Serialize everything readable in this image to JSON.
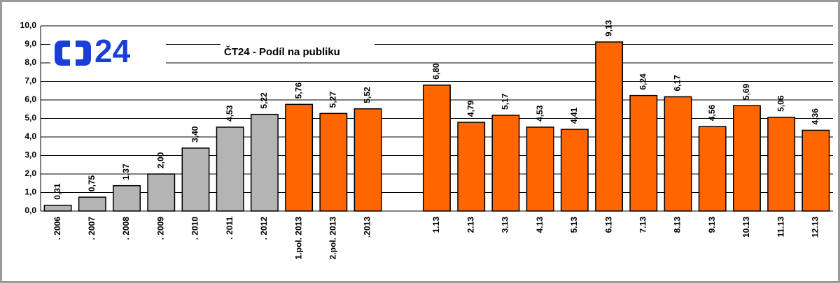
{
  "chart_data": {
    "type": "bar",
    "title": "ČT24 - Podíl na publiku",
    "logo": "24",
    "categories": [
      ". 2006",
      ". 2007",
      ". 2008",
      ". 2009",
      ". 2010",
      ". 2011",
      ". 2012",
      "1.pol. 2013",
      "2.pol. 2013",
      ".2013",
      null,
      "1.13",
      "2.13",
      "3.13",
      "4.13",
      "5.13",
      "6.13",
      "7.13",
      "8.13",
      "9.13",
      "10.13",
      "11.13",
      "12.13"
    ],
    "values": [
      0.31,
      0.75,
      1.37,
      2.0,
      3.4,
      4.53,
      5.22,
      5.76,
      5.27,
      5.52,
      null,
      6.8,
      4.79,
      5.17,
      4.53,
      4.41,
      9.13,
      6.24,
      6.17,
      4.56,
      5.69,
      5.06,
      4.36
    ],
    "value_labels": [
      "0,31",
      "0,75",
      "1,37",
      "2,00",
      "3,40",
      "4,53",
      "5,22",
      "5,76",
      "5,27",
      "5,52",
      null,
      "6,80",
      "4,79",
      "5,17",
      "4,53",
      "4,41",
      "9,13",
      "6,24",
      "6,17",
      "4,56",
      "5,69",
      "5,06",
      "4,36"
    ],
    "colors": [
      "#b4b4b4",
      "#b4b4b4",
      "#b4b4b4",
      "#b4b4b4",
      "#b4b4b4",
      "#b4b4b4",
      "#b4b4b4",
      "#ff6600",
      "#ff6600",
      "#ff6600",
      null,
      "#ff6600",
      "#ff6600",
      "#ff6600",
      "#ff6600",
      "#ff6600",
      "#ff6600",
      "#ff6600",
      "#ff6600",
      "#ff6600",
      "#ff6600",
      "#ff6600",
      "#ff6600"
    ],
    "ylim": [
      0,
      10
    ],
    "yticks": [
      {
        "value": 0,
        "label": "0,0"
      },
      {
        "value": 1,
        "label": "1,0"
      },
      {
        "value": 2,
        "label": "2,0"
      },
      {
        "value": 3,
        "label": "3,0"
      },
      {
        "value": 4,
        "label": "4,0"
      },
      {
        "value": 5,
        "label": "5,0"
      },
      {
        "value": 6,
        "label": "6,0"
      },
      {
        "value": 7,
        "label": "7,0"
      },
      {
        "value": 8,
        "label": "8,0"
      },
      {
        "value": 9,
        "label": "9,0"
      },
      {
        "value": 10,
        "label": "10,0"
      }
    ],
    "grid": true
  }
}
